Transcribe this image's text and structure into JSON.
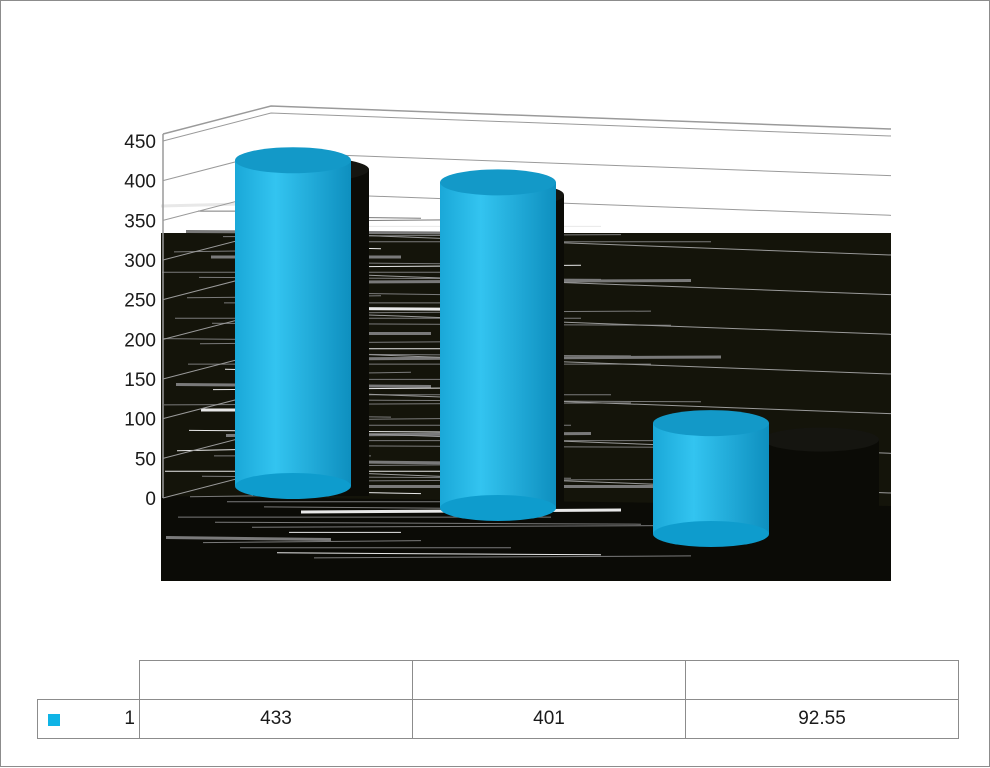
{
  "chart_data": {
    "type": "bar",
    "style": "3d-cylinder",
    "categories": [
      "",
      "",
      ""
    ],
    "series": [
      {
        "name": "1",
        "values": [
          433,
          401,
          92.55
        ],
        "color": "#0fb4e6"
      }
    ],
    "y_ticks": [
      "0",
      "50",
      "100",
      "150",
      "200",
      "250",
      "300",
      "350",
      "400",
      "450"
    ],
    "ylim": [
      0,
      450
    ],
    "grid": true,
    "legend": "data-table-below",
    "title": "",
    "xlabel": "",
    "ylabel": ""
  },
  "table": {
    "headers": [
      "",
      "",
      ""
    ],
    "rows": [
      {
        "series": "1",
        "values": [
          "433",
          "401",
          "92.55"
        ]
      }
    ]
  },
  "colors": {
    "series": "#0fb4e6",
    "series_top": "#1399c8",
    "floor": "#14140a",
    "grid": "#9a9a9a"
  }
}
